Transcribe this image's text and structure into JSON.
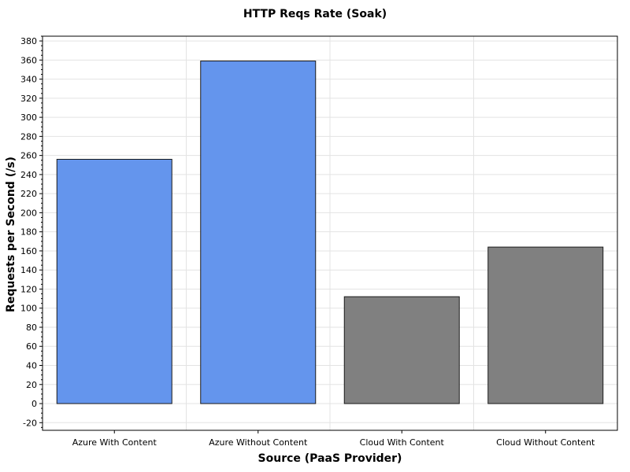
{
  "chart_data": {
    "type": "bar",
    "title": "HTTP Reqs Rate (Soak)",
    "xlabel": "Source (PaaS Provider)",
    "ylabel": "Requests per Second (/s)",
    "categories": [
      "Azure With Content",
      "Azure Without Content",
      "Cloud With Content",
      "Cloud Without Content"
    ],
    "values": [
      256,
      359,
      112,
      164
    ],
    "bar_colors": [
      "#6495ED",
      "#6495ED",
      "#808080",
      "#808080"
    ],
    "ylim": [
      -28,
      385
    ],
    "yticks": [
      -20,
      0,
      20,
      40,
      60,
      80,
      100,
      120,
      140,
      160,
      180,
      200,
      220,
      240,
      260,
      280,
      300,
      320,
      340,
      360,
      380
    ],
    "grid": true,
    "legend": "none"
  }
}
